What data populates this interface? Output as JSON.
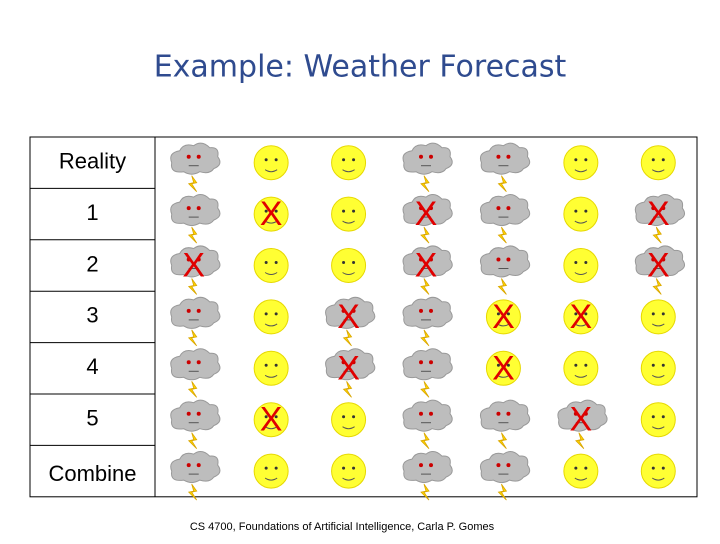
{
  "title": "Example: Weather Forecast",
  "footer": "CS 4700, Foundations of  Artificial Intelligence, Carla P. Gomes",
  "table": {
    "rows": [
      {
        "label": "Reality",
        "cells": [
          {
            "icon": "storm"
          },
          {
            "icon": "sun"
          },
          {
            "icon": "sun"
          },
          {
            "icon": "storm"
          },
          {
            "icon": "storm"
          },
          {
            "icon": "sun"
          },
          {
            "icon": "sun"
          }
        ]
      },
      {
        "label": "1",
        "cells": [
          {
            "icon": "storm"
          },
          {
            "icon": "sun",
            "mark": "X"
          },
          {
            "icon": "sun"
          },
          {
            "icon": "storm",
            "mark": "X"
          },
          {
            "icon": "storm"
          },
          {
            "icon": "sun"
          },
          {
            "icon": "storm",
            "mark": "X"
          }
        ]
      },
      {
        "label": "2",
        "cells": [
          {
            "icon": "storm",
            "mark": "X"
          },
          {
            "icon": "sun"
          },
          {
            "icon": "sun"
          },
          {
            "icon": "storm",
            "mark": "X"
          },
          {
            "icon": "storm"
          },
          {
            "icon": "sun"
          },
          {
            "icon": "storm",
            "mark": "X"
          }
        ]
      },
      {
        "label": "3",
        "cells": [
          {
            "icon": "storm"
          },
          {
            "icon": "sun"
          },
          {
            "icon": "storm",
            "mark": "X"
          },
          {
            "icon": "storm"
          },
          {
            "icon": "sun",
            "mark": "X"
          },
          {
            "icon": "sun",
            "mark": "X"
          },
          {
            "icon": "sun"
          }
        ]
      },
      {
        "label": "4",
        "cells": [
          {
            "icon": "storm"
          },
          {
            "icon": "sun"
          },
          {
            "icon": "storm",
            "mark": "X"
          },
          {
            "icon": "storm"
          },
          {
            "icon": "sun",
            "mark": "X"
          },
          {
            "icon": "sun"
          },
          {
            "icon": "sun"
          }
        ]
      },
      {
        "label": "5",
        "cells": [
          {
            "icon": "storm"
          },
          {
            "icon": "sun",
            "mark": "X"
          },
          {
            "icon": "sun"
          },
          {
            "icon": "storm"
          },
          {
            "icon": "storm"
          },
          {
            "icon": "storm",
            "mark": "X"
          },
          {
            "icon": "sun"
          }
        ]
      },
      {
        "label": "Combine",
        "cells": [
          {
            "icon": "storm"
          },
          {
            "icon": "sun"
          },
          {
            "icon": "sun"
          },
          {
            "icon": "storm"
          },
          {
            "icon": "storm"
          },
          {
            "icon": "sun"
          },
          {
            "icon": "sun"
          }
        ]
      }
    ]
  }
}
